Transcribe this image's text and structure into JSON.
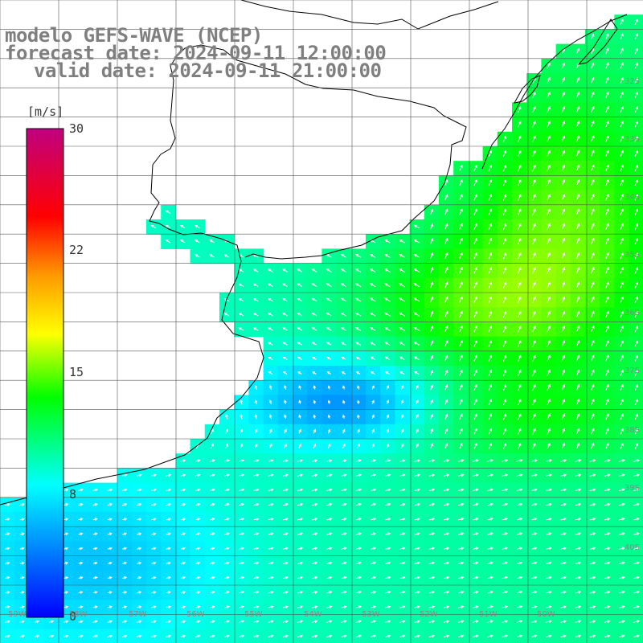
{
  "title": {
    "model": "modelo GEFS-WAVE (NCEP)",
    "forecast": "forecast date: 2024-09-11 12:00:00",
    "valid": "valid date: 2024-09-11 21:00:00"
  },
  "colorbar": {
    "unit": "[m/s]",
    "min": 0,
    "max": 30,
    "ticks": [
      "30",
      "22",
      "15",
      "8",
      "0"
    ],
    "colors": [
      "#0000ff",
      "#00aaff",
      "#00ffff",
      "#00ff00",
      "#ffff00",
      "#ff9900",
      "#ff0000",
      "#c00080"
    ]
  },
  "grid_labels": {
    "lat": [
      "32S",
      "33S",
      "34S",
      "35S",
      "36S",
      "37S",
      "38S",
      "39S",
      "40S"
    ],
    "lon": [
      "59W",
      "58W",
      "57W",
      "56W",
      "55W",
      "54W",
      "53W",
      "52W",
      "51W",
      "50W"
    ]
  },
  "colors": {
    "land": "#ffffff",
    "coast": "#000000",
    "grid": "#555555",
    "title": "#7f7f7f",
    "arrow": "#ffffff"
  }
}
